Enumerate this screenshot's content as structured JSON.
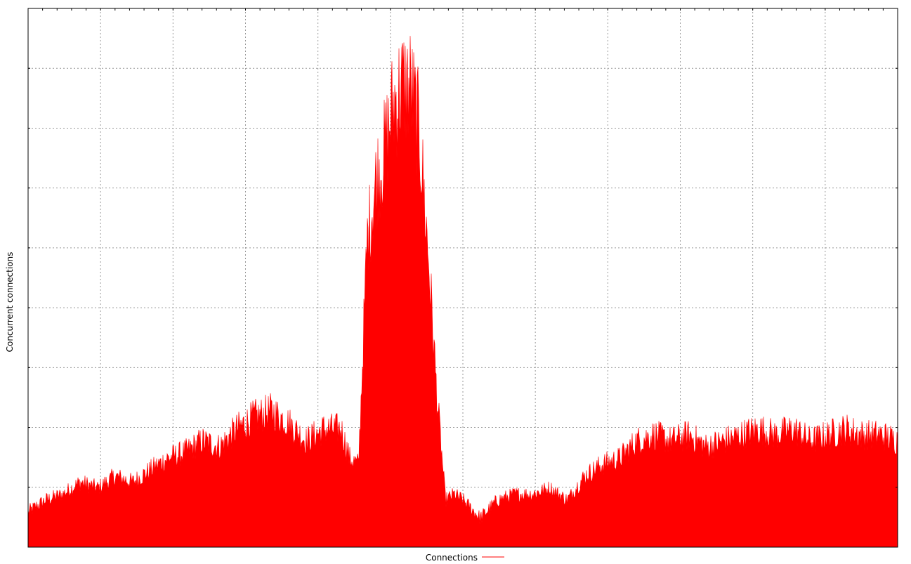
{
  "chart_data": {
    "type": "area",
    "title": "",
    "xlabel": "",
    "ylabel": "Concurrent connections",
    "legend": {
      "position": "bottom-center",
      "entries": [
        "Connections"
      ]
    },
    "grid": true,
    "ylim": [
      0,
      9
    ],
    "xlim": [
      0,
      100
    ],
    "y_tick_labels_shown": false,
    "x_tick_labels_shown": false,
    "series": [
      {
        "name": "Connections",
        "color": "#ff0000",
        "x": [
          0,
          2,
          4,
          6,
          8,
          10,
          12,
          14,
          16,
          18,
          20,
          22,
          24,
          26,
          28,
          30,
          32,
          34,
          36,
          37,
          38,
          39,
          40,
          41,
          42,
          43,
          44,
          45,
          46,
          47,
          48,
          49,
          50,
          52,
          54,
          56,
          58,
          60,
          62,
          64,
          66,
          68,
          70,
          72,
          74,
          76,
          78,
          80,
          82,
          84,
          86,
          88,
          90,
          92,
          94,
          96,
          98,
          100
        ],
        "values": [
          0.6,
          0.8,
          0.9,
          1.1,
          1.0,
          1.2,
          1.1,
          1.3,
          1.5,
          1.6,
          1.8,
          1.7,
          2.0,
          2.2,
          2.3,
          2.1,
          1.8,
          2.0,
          2.0,
          1.5,
          1.4,
          5.2,
          6.2,
          6.7,
          7.5,
          7.8,
          7.8,
          7.0,
          5.0,
          2.6,
          0.8,
          0.9,
          0.8,
          0.5,
          0.8,
          0.9,
          0.9,
          1.0,
          0.8,
          1.2,
          1.4,
          1.5,
          1.8,
          1.9,
          1.8,
          1.9,
          1.7,
          1.8,
          1.9,
          2.0,
          1.9,
          2.0,
          1.8,
          1.9,
          2.0,
          1.9,
          1.9,
          1.8
        ]
      }
    ]
  }
}
